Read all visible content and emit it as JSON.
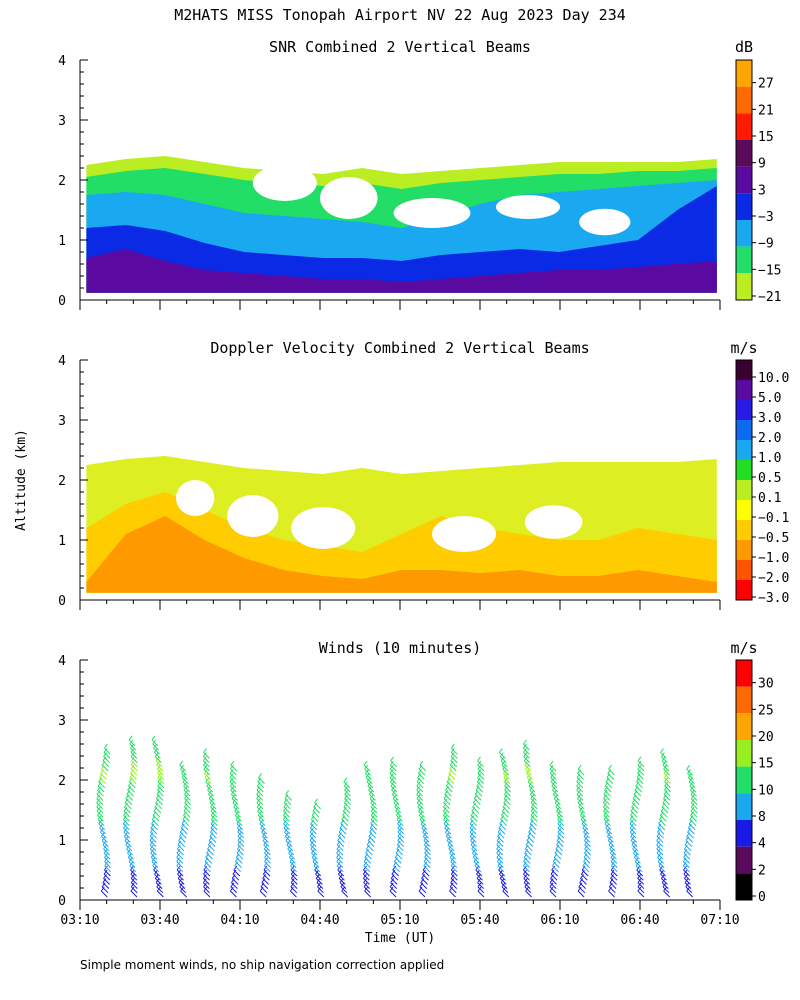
{
  "title": "M2HATS MISS Tonopah Airport NV  22 Aug 2023 Day 234",
  "footnote": "Simple moment winds, no ship navigation correction applied",
  "chart_data": [
    {
      "type": "heatmap",
      "title": "SNR Combined 2 Vertical Beams",
      "xlabel": "",
      "ylabel": "",
      "xlim": [
        "03:10",
        "07:10"
      ],
      "ylim": [
        0,
        4
      ],
      "yticks": [
        "0",
        "1",
        "2",
        "3",
        "4"
      ],
      "colorbar": {
        "unit": "dB",
        "labels": [
          "27",
          "21",
          "15",
          "9",
          "3",
          "−3",
          "−9",
          "−15",
          "−21"
        ],
        "colors": [
          "#ffa500",
          "#ff6a00",
          "#ff1a00",
          "#5a0a5a",
          "#5a0aa0",
          "#0a2ae6",
          "#1aa8f0",
          "#22dd66",
          "#bbee22"
        ]
      },
      "layers": [
        {
          "name": "-21 dB",
          "color": "#bbee22",
          "top": [
            2.25,
            2.35,
            2.4,
            2.3,
            2.2,
            2.15,
            2.1,
            2.2,
            2.1,
            2.15,
            2.2,
            2.25,
            2.3,
            2.3,
            2.3,
            2.3,
            2.35
          ],
          "bottom": 0.12
        },
        {
          "name": "-15 dB",
          "color": "#22dd66",
          "top": [
            2.05,
            2.15,
            2.2,
            2.1,
            2.0,
            1.95,
            1.9,
            1.95,
            1.85,
            1.95,
            2.0,
            2.05,
            2.1,
            2.1,
            2.15,
            2.15,
            2.2
          ],
          "bottom": 0.12
        },
        {
          "name": "-9 dB",
          "color": "#1aa8f0",
          "top": [
            1.75,
            1.8,
            1.75,
            1.6,
            1.45,
            1.4,
            1.35,
            1.3,
            1.2,
            1.4,
            1.6,
            1.75,
            1.8,
            1.85,
            1.9,
            1.95,
            2.0
          ],
          "bottom": 0.12
        },
        {
          "name": "-3 dB",
          "color": "#0a2ae6",
          "top": [
            1.2,
            1.25,
            1.15,
            0.95,
            0.8,
            0.75,
            0.7,
            0.7,
            0.65,
            0.75,
            0.8,
            0.85,
            0.8,
            0.9,
            1.0,
            1.5,
            1.9
          ],
          "bottom": 0.12
        },
        {
          "name": "3 dB",
          "color": "#5a0aa0",
          "top": [
            0.7,
            0.85,
            0.65,
            0.5,
            0.45,
            0.4,
            0.35,
            0.35,
            0.3,
            0.35,
            0.4,
            0.45,
            0.5,
            0.5,
            0.55,
            0.6,
            0.65
          ],
          "bottom": 0.12
        }
      ]
    },
    {
      "type": "heatmap",
      "title": "Doppler Velocity Combined 2 Vertical Beams",
      "xlabel": "",
      "ylabel": "Altitude (km)",
      "xlim": [
        "03:10",
        "07:10"
      ],
      "ylim": [
        0,
        4
      ],
      "yticks": [
        "0",
        "1",
        "2",
        "3",
        "4"
      ],
      "colorbar": {
        "unit": "m/s",
        "labels": [
          "10.0",
          "5.0",
          "3.0",
          "2.0",
          "1.0",
          "0.5",
          "0.1",
          "−0.1",
          "−0.5",
          "−1.0",
          "−2.0",
          "−3.0"
        ],
        "colors": [
          "#3a0030",
          "#5a0aa0",
          "#2a1ae6",
          "#0a6af0",
          "#1aa8f0",
          "#22dd22",
          "#bbee22",
          "#ffff00",
          "#ffcc00",
          "#ff9900",
          "#ff5500",
          "#ff0000"
        ]
      },
      "layers": [
        {
          "name": "-0.1 m/s",
          "color": "#ddee22",
          "top": [
            2.25,
            2.35,
            2.4,
            2.3,
            2.2,
            2.15,
            2.1,
            2.2,
            2.1,
            2.15,
            2.2,
            2.25,
            2.3,
            2.3,
            2.3,
            2.3,
            2.35
          ],
          "bottom": 0.12
        },
        {
          "name": "-0.5 m/s",
          "color": "#ffcc00",
          "top": [
            1.2,
            1.6,
            1.8,
            1.5,
            1.2,
            1.0,
            0.9,
            0.8,
            1.1,
            1.4,
            1.2,
            1.1,
            1.0,
            1.0,
            1.2,
            1.1,
            1.0
          ],
          "bottom": 0.12
        },
        {
          "name": "-1.0 m/s",
          "color": "#ff9900",
          "top": [
            0.3,
            1.1,
            1.4,
            1.0,
            0.7,
            0.5,
            0.4,
            0.35,
            0.5,
            0.5,
            0.45,
            0.5,
            0.4,
            0.4,
            0.5,
            0.4,
            0.3
          ],
          "bottom": 0.12
        }
      ]
    },
    {
      "type": "scatter",
      "title": "Winds (10 minutes)",
      "xlabel": "Time (UT)",
      "ylabel": "",
      "xlim": [
        "03:10",
        "07:10"
      ],
      "ylim": [
        0,
        4
      ],
      "xticks": [
        "03:10",
        "03:40",
        "04:10",
        "04:40",
        "05:10",
        "05:40",
        "06:10",
        "06:40",
        "07:10"
      ],
      "yticks": [
        "0",
        "1",
        "2",
        "3",
        "4"
      ],
      "colorbar": {
        "unit": "m/s",
        "labels": [
          "30",
          "25",
          "20",
          "15",
          "10",
          "8",
          "4",
          "2",
          "0"
        ],
        "colors": [
          "#ff0000",
          "#ff6a00",
          "#ffa500",
          "#99ee22",
          "#22dd66",
          "#1aa8f0",
          "#1a1ae6",
          "#5a0a5a",
          "#000000"
        ]
      },
      "profiles": [
        {
          "time_min": 10,
          "top_km": 2.4
        },
        {
          "time_min": 20,
          "top_km": 2.55
        },
        {
          "time_min": 30,
          "top_km": 2.55
        },
        {
          "time_min": 40,
          "top_km": 2.1
        },
        {
          "time_min": 50,
          "top_km": 2.35
        },
        {
          "time_min": 60,
          "top_km": 2.15
        },
        {
          "time_min": 70,
          "top_km": 1.95
        },
        {
          "time_min": 80,
          "top_km": 1.65
        },
        {
          "time_min": 90,
          "top_km": 1.5
        },
        {
          "time_min": 100,
          "top_km": 1.85
        },
        {
          "time_min": 110,
          "top_km": 2.1
        },
        {
          "time_min": 120,
          "top_km": 2.2
        },
        {
          "time_min": 130,
          "top_km": 2.15
        },
        {
          "time_min": 140,
          "top_km": 2.4
        },
        {
          "time_min": 150,
          "top_km": 2.2
        },
        {
          "time_min": 160,
          "top_km": 2.35
        },
        {
          "time_min": 170,
          "top_km": 2.45
        },
        {
          "time_min": 180,
          "top_km": 2.15
        },
        {
          "time_min": 190,
          "top_km": 2.05
        },
        {
          "time_min": 200,
          "top_km": 2.05
        },
        {
          "time_min": 210,
          "top_km": 2.2
        },
        {
          "time_min": 220,
          "top_km": 2.35
        },
        {
          "time_min": 230,
          "top_km": 2.05
        }
      ]
    }
  ]
}
